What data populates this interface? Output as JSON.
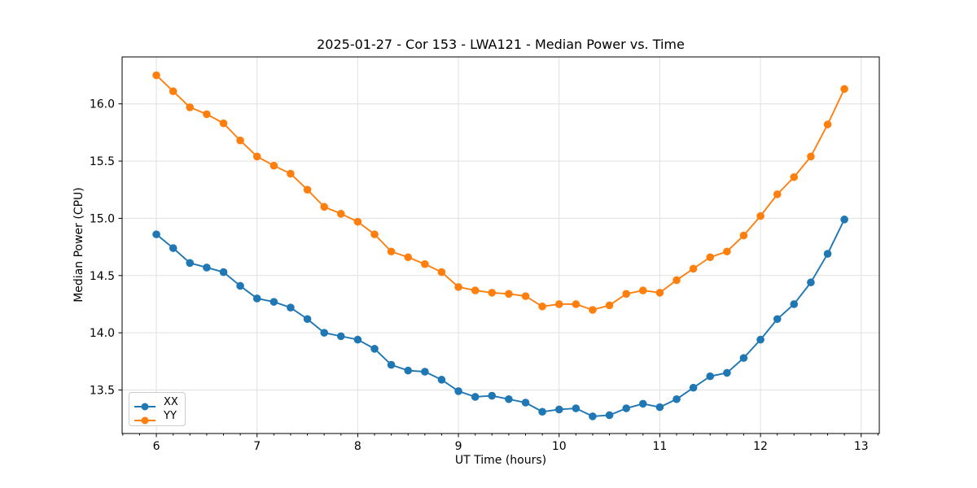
{
  "chart_data": {
    "type": "line",
    "title": "2025-01-27 - Cor 153 - LWA121 - Median Power vs. Time",
    "xlabel": "UT Time (hours)",
    "ylabel": "Median Power (CPU)",
    "xlim": [
      5.66,
      13.18
    ],
    "ylim": [
      13.12,
      16.41
    ],
    "xtick_values": [
      6,
      7,
      8,
      9,
      10,
      11,
      12,
      13
    ],
    "xtick_labels": [
      "6",
      "7",
      "8",
      "9",
      "10",
      "11",
      "12",
      "13"
    ],
    "minor_xtick_interval": 0.1666667,
    "ytick_values": [
      13.5,
      14.0,
      14.5,
      15.0,
      15.5,
      16.0
    ],
    "ytick_labels": [
      "13.5",
      "14.0",
      "14.5",
      "15.0",
      "15.5",
      "16.0"
    ],
    "grid": true,
    "grid_color": "#e0e0e0",
    "spine_color": "#000000",
    "legend_position": "lower left",
    "x": [
      6.0,
      6.167,
      6.333,
      6.5,
      6.667,
      6.833,
      7.0,
      7.167,
      7.333,
      7.5,
      7.667,
      7.833,
      8.0,
      8.167,
      8.333,
      8.5,
      8.667,
      8.833,
      9.0,
      9.167,
      9.333,
      9.5,
      9.667,
      9.833,
      10.0,
      10.167,
      10.333,
      10.5,
      10.667,
      10.833,
      11.0,
      11.167,
      11.333,
      11.5,
      11.667,
      11.833,
      12.0,
      12.167,
      12.333,
      12.5,
      12.667,
      12.833
    ],
    "series": [
      {
        "name": "XX",
        "color": "#1f77b4",
        "values": [
          14.86,
          14.74,
          14.61,
          14.57,
          14.53,
          14.41,
          14.3,
          14.27,
          14.22,
          14.12,
          14.0,
          13.97,
          13.94,
          13.86,
          13.72,
          13.67,
          13.66,
          13.59,
          13.49,
          13.44,
          13.45,
          13.42,
          13.39,
          13.31,
          13.33,
          13.34,
          13.27,
          13.28,
          13.34,
          13.38,
          13.35,
          13.42,
          13.52,
          13.62,
          13.65,
          13.78,
          13.94,
          14.12,
          14.25,
          14.44,
          14.69,
          14.99
        ]
      },
      {
        "name": "YY",
        "color": "#ff7f0e",
        "values": [
          16.25,
          16.11,
          15.97,
          15.91,
          15.83,
          15.68,
          15.54,
          15.46,
          15.39,
          15.25,
          15.1,
          15.04,
          14.97,
          14.86,
          14.71,
          14.66,
          14.6,
          14.53,
          14.4,
          14.37,
          14.35,
          14.34,
          14.32,
          14.23,
          14.25,
          14.25,
          14.2,
          14.24,
          14.34,
          14.37,
          14.35,
          14.46,
          14.56,
          14.66,
          14.71,
          14.85,
          15.02,
          15.21,
          15.36,
          15.54,
          15.82,
          16.13
        ]
      }
    ]
  }
}
